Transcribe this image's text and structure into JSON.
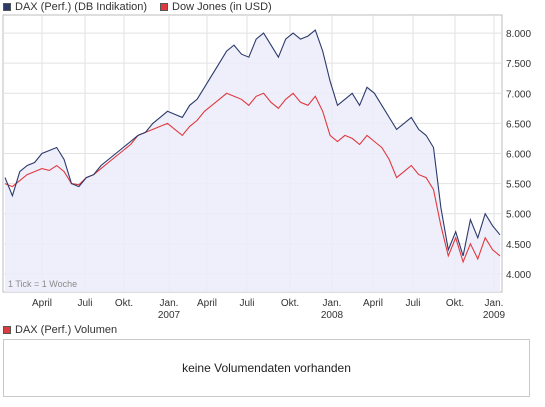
{
  "legend_top": [
    {
      "label": "DAX (Perf.) (DB Indikation)",
      "color": "#2b3a6b"
    },
    {
      "label": "Dow Jones (in USD)",
      "color": "#e0393e"
    }
  ],
  "legend_bottom": {
    "label": "DAX (Perf.) Volumen",
    "color": "#e0393e"
  },
  "volume_message": "keine Volumendaten vorhanden",
  "tick_note": "1 Tick = 1 Woche",
  "chart_data": {
    "type": "line",
    "ylim": [
      3700,
      8300
    ],
    "y_ticks": [
      4000,
      4500,
      5000,
      5500,
      6000,
      6500,
      7000,
      7500,
      8000
    ],
    "y_tick_labels": [
      "4.000",
      "4.500",
      "5.000",
      "5.500",
      "6.000",
      "6.500",
      "7.000",
      "7.500",
      "8.000"
    ],
    "x_ticks": [
      {
        "label": "April",
        "year": ""
      },
      {
        "label": "Juli",
        "year": ""
      },
      {
        "label": "Okt.",
        "year": ""
      },
      {
        "label": "Jan.",
        "year": "2007"
      },
      {
        "label": "April",
        "year": ""
      },
      {
        "label": "Juli",
        "year": ""
      },
      {
        "label": "Okt.",
        "year": ""
      },
      {
        "label": "Jan.",
        "year": "2008"
      },
      {
        "label": "April",
        "year": ""
      },
      {
        "label": "Juli",
        "year": ""
      },
      {
        "label": "Okt.",
        "year": ""
      },
      {
        "label": "Jan.",
        "year": "2009"
      }
    ],
    "x_start": "2006-02",
    "x_end": "2009-02",
    "grid": true,
    "series": [
      {
        "name": "DAX (Perf.) (DB Indikation)",
        "color": "#2b3a6b",
        "fill": "#ececfa",
        "values": [
          5600,
          5300,
          5700,
          5800,
          5850,
          6000,
          6050,
          6100,
          5900,
          5500,
          5450,
          5600,
          5650,
          5800,
          5900,
          6000,
          6100,
          6200,
          6300,
          6350,
          6500,
          6600,
          6700,
          6650,
          6600,
          6800,
          6900,
          7100,
          7300,
          7500,
          7700,
          7800,
          7650,
          7600,
          7900,
          8000,
          7800,
          7600,
          7900,
          8000,
          7900,
          7950,
          8050,
          7700,
          7200,
          6800,
          6900,
          7000,
          6800,
          7100,
          7000,
          6800,
          6600,
          6400,
          6500,
          6600,
          6400,
          6300,
          6100,
          5100,
          4400,
          4700,
          4300,
          4900,
          4600,
          5000,
          4800,
          4650
        ]
      },
      {
        "name": "Dow Jones (in USD)",
        "color": "#e0393e",
        "values": [
          5500,
          5450,
          5550,
          5650,
          5700,
          5750,
          5720,
          5800,
          5700,
          5500,
          5480,
          5600,
          5650,
          5750,
          5850,
          5950,
          6050,
          6150,
          6300,
          6350,
          6400,
          6450,
          6500,
          6400,
          6300,
          6450,
          6550,
          6700,
          6800,
          6900,
          7000,
          6950,
          6900,
          6800,
          6950,
          7000,
          6850,
          6750,
          6900,
          7000,
          6850,
          6800,
          6950,
          6700,
          6300,
          6200,
          6300,
          6250,
          6150,
          6300,
          6200,
          6100,
          5900,
          5600,
          5700,
          5800,
          5650,
          5600,
          5400,
          4800,
          4300,
          4600,
          4200,
          4500,
          4250,
          4600,
          4400,
          4300
        ]
      }
    ]
  }
}
